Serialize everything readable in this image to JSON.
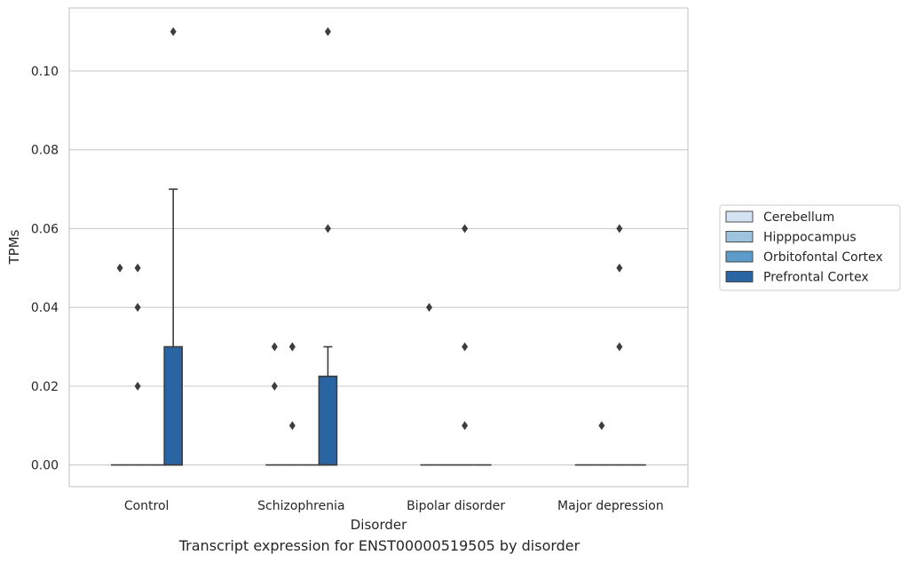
{
  "caption": "Transcript expression for ENST00000519505 by disorder",
  "colors": {
    "Cerebellum": "#d3e3f1",
    "Hipppocampus": "#9dc3de",
    "Orbitofontal Cortex": "#5c9cca",
    "Prefrontal Cortex": "#2a65a3",
    "edge": "#3d3d3d",
    "grid": "#cccccc",
    "frame": "#cccccc"
  },
  "chart_data": {
    "type": "box",
    "title": "",
    "xlabel": "Disorder",
    "ylabel": "TPMs",
    "categories": [
      "Control",
      "Schizophrenia",
      "Bipolar disorder",
      "Major depression"
    ],
    "hue_order": [
      "Cerebellum",
      "Hipppocampus",
      "Orbitofontal Cortex",
      "Prefrontal Cortex"
    ],
    "ylim": [
      -0.0055,
      0.116
    ],
    "yticks": [
      0.0,
      0.02,
      0.04,
      0.06,
      0.08,
      0.1
    ],
    "ytick_labels": [
      "0.00",
      "0.02",
      "0.04",
      "0.06",
      "0.08",
      "0.10"
    ],
    "grid": true,
    "legend_position": "right",
    "boxes": [
      {
        "category": "Control",
        "hue": "Cerebellum",
        "q1": 0,
        "median": 0,
        "q3": 0,
        "whisker_low": 0,
        "whisker_high": 0,
        "outliers": [
          0.05
        ]
      },
      {
        "category": "Control",
        "hue": "Hipppocampus",
        "q1": 0,
        "median": 0,
        "q3": 0,
        "whisker_low": 0,
        "whisker_high": 0,
        "outliers": [
          0.02,
          0.04,
          0.05
        ]
      },
      {
        "category": "Control",
        "hue": "Orbitofontal Cortex",
        "q1": 0,
        "median": 0,
        "q3": 0,
        "whisker_low": 0,
        "whisker_high": 0,
        "outliers": []
      },
      {
        "category": "Control",
        "hue": "Prefrontal Cortex",
        "q1": 0,
        "median": 0,
        "q3": 0.03,
        "whisker_low": 0,
        "whisker_high": 0.07,
        "outliers": [
          0.11
        ]
      },
      {
        "category": "Schizophrenia",
        "hue": "Cerebellum",
        "q1": 0,
        "median": 0,
        "q3": 0,
        "whisker_low": 0,
        "whisker_high": 0,
        "outliers": [
          0.02,
          0.03
        ]
      },
      {
        "category": "Schizophrenia",
        "hue": "Hipppocampus",
        "q1": 0,
        "median": 0,
        "q3": 0,
        "whisker_low": 0,
        "whisker_high": 0,
        "outliers": [
          0.01,
          0.03,
          0.03
        ]
      },
      {
        "category": "Schizophrenia",
        "hue": "Orbitofontal Cortex",
        "q1": 0,
        "median": 0,
        "q3": 0,
        "whisker_low": 0,
        "whisker_high": 0,
        "outliers": []
      },
      {
        "category": "Schizophrenia",
        "hue": "Prefrontal Cortex",
        "q1": 0,
        "median": 0,
        "q3": 0.0225,
        "whisker_low": 0,
        "whisker_high": 0.03,
        "outliers": [
          0.06,
          0.11
        ]
      },
      {
        "category": "Bipolar disorder",
        "hue": "Cerebellum",
        "q1": 0,
        "median": 0,
        "q3": 0,
        "whisker_low": 0,
        "whisker_high": 0,
        "outliers": [
          0.04
        ]
      },
      {
        "category": "Bipolar disorder",
        "hue": "Hipppocampus",
        "q1": 0,
        "median": 0,
        "q3": 0,
        "whisker_low": 0,
        "whisker_high": 0,
        "outliers": []
      },
      {
        "category": "Bipolar disorder",
        "hue": "Orbitofontal Cortex",
        "q1": 0,
        "median": 0,
        "q3": 0,
        "whisker_low": 0,
        "whisker_high": 0,
        "outliers": [
          0.01,
          0.03,
          0.06
        ]
      },
      {
        "category": "Bipolar disorder",
        "hue": "Prefrontal Cortex",
        "q1": 0,
        "median": 0,
        "q3": 0,
        "whisker_low": 0,
        "whisker_high": 0,
        "outliers": []
      },
      {
        "category": "Major depression",
        "hue": "Cerebellum",
        "q1": 0,
        "median": 0,
        "q3": 0,
        "whisker_low": 0,
        "whisker_high": 0,
        "outliers": []
      },
      {
        "category": "Major depression",
        "hue": "Hipppocampus",
        "q1": 0,
        "median": 0,
        "q3": 0,
        "whisker_low": 0,
        "whisker_high": 0,
        "outliers": [
          0.01
        ]
      },
      {
        "category": "Major depression",
        "hue": "Orbitofontal Cortex",
        "q1": 0,
        "median": 0,
        "q3": 0,
        "whisker_low": 0,
        "whisker_high": 0,
        "outliers": [
          0.03,
          0.05,
          0.06
        ]
      },
      {
        "category": "Major depression",
        "hue": "Prefrontal Cortex",
        "q1": 0,
        "median": 0,
        "q3": 0,
        "whisker_low": 0,
        "whisker_high": 0,
        "outliers": []
      }
    ]
  }
}
